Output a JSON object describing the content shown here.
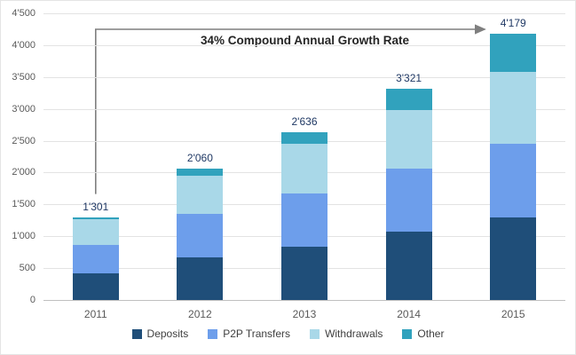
{
  "chart_data": {
    "type": "bar",
    "stacked": true,
    "title": "",
    "annotation": "34% Compound Annual Growth Rate",
    "categories": [
      "2011",
      "2012",
      "2013",
      "2014",
      "2015"
    ],
    "series": [
      {
        "name": "Deposits",
        "color": "#1F4E79",
        "values": [
          420,
          670,
          830,
          1070,
          1300
        ]
      },
      {
        "name": "P2P Transfers",
        "color": "#6D9EEB",
        "values": [
          445,
          680,
          840,
          990,
          1150
        ]
      },
      {
        "name": "Withdrawals",
        "color": "#A9D8E8",
        "values": [
          400,
          600,
          780,
          920,
          1130
        ]
      },
      {
        "name": "Other",
        "color": "#31A2BD",
        "values": [
          36,
          110,
          186,
          341,
          599
        ]
      }
    ],
    "totals": [
      "1'301",
      "2'060",
      "2'636",
      "3'321",
      "4'179"
    ],
    "ylim": [
      0,
      4500
    ],
    "ytick_step": 500,
    "ytick_labels": [
      "0",
      "500",
      "1'000",
      "1'500",
      "2'000",
      "2'500",
      "3'000",
      "3'500",
      "4'000",
      "4'500"
    ],
    "grid": true,
    "legend_position": "bottom",
    "arrow_color": "#7F7F7F"
  }
}
